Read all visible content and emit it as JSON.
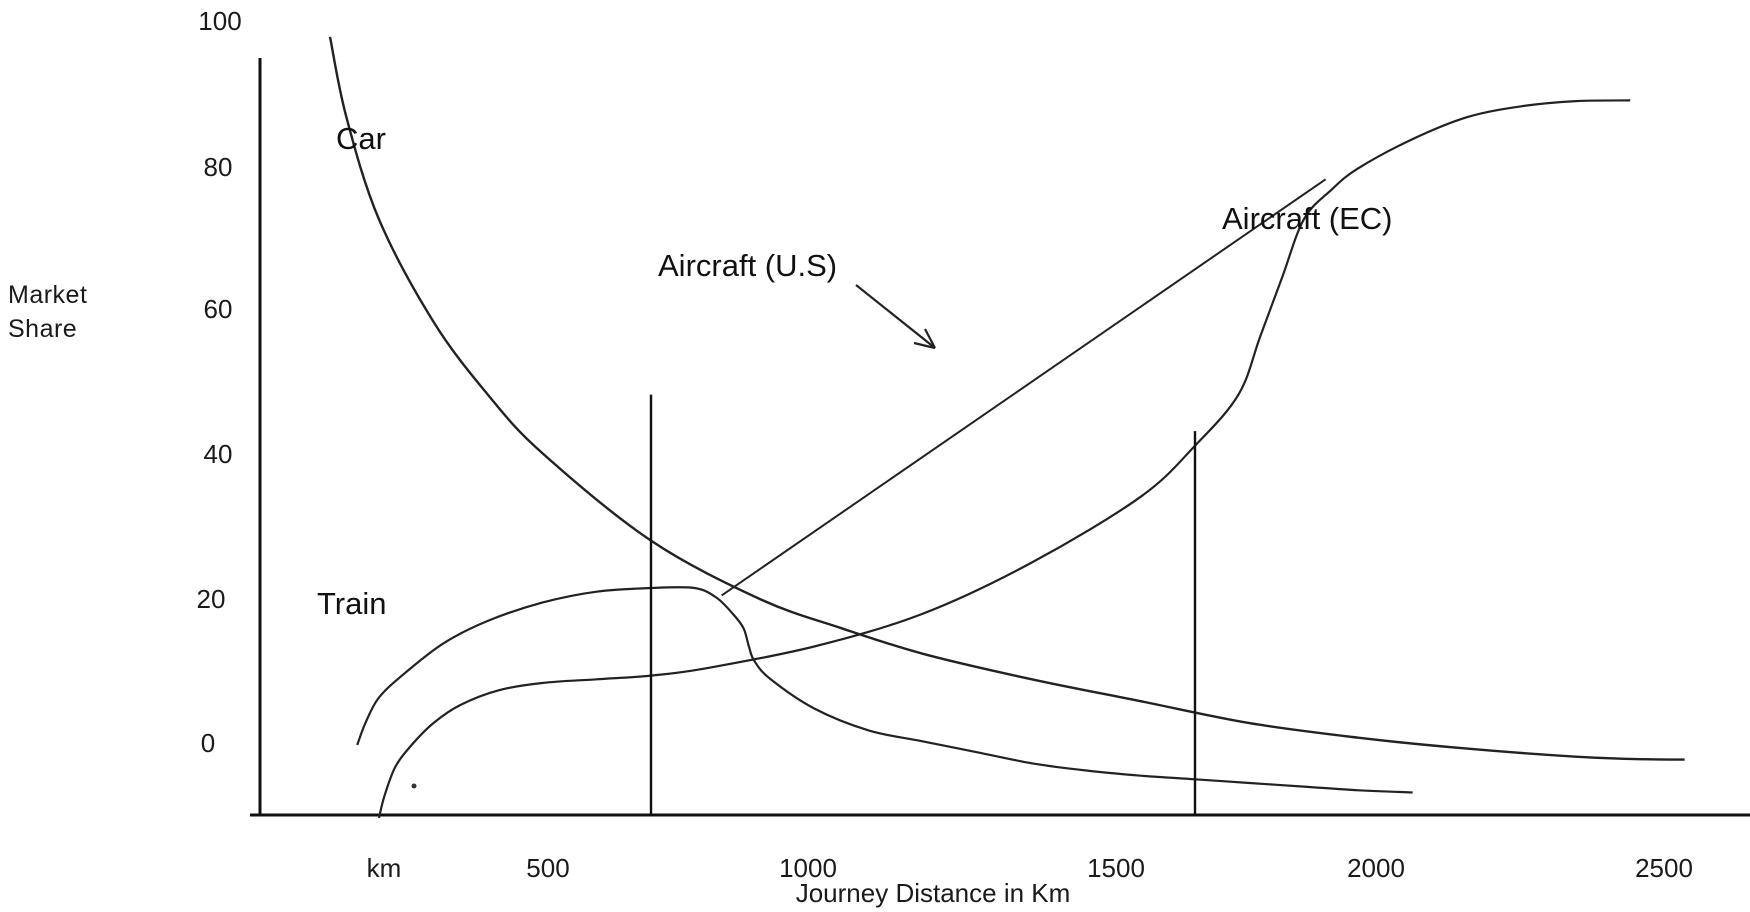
{
  "chart_data": {
    "type": "line",
    "title": "",
    "ylabel_lines": [
      "Market",
      "Share"
    ],
    "xlabel": "Journey Distance in Km",
    "x_ticks": [
      "km",
      "500",
      "1000",
      "1500",
      "2000",
      "2500"
    ],
    "y_ticks": [
      "100",
      "80",
      "60",
      "40",
      "20",
      "0"
    ],
    "xlim": [
      0,
      2500
    ],
    "ylim": [
      -10,
      100
    ],
    "series": [
      {
        "name": "Car",
        "points": [
          [
            -90,
            97
          ],
          [
            -60,
            86
          ],
          [
            0,
            72
          ],
          [
            100,
            58
          ],
          [
            200,
            48
          ],
          [
            300,
            40
          ],
          [
            500,
            28
          ],
          [
            700,
            20
          ],
          [
            850,
            16
          ],
          [
            1000,
            12.5
          ],
          [
            1200,
            9
          ],
          [
            1400,
            6
          ],
          [
            1600,
            3
          ],
          [
            1800,
            1
          ],
          [
            2000,
            -0.5
          ],
          [
            2200,
            -1.6
          ],
          [
            2300,
            -1.9
          ],
          [
            2400,
            -2
          ]
        ]
      },
      {
        "name": "Train",
        "points": [
          [
            -40,
            0
          ],
          [
            -25,
            3
          ],
          [
            0,
            6.5
          ],
          [
            50,
            10
          ],
          [
            120,
            14
          ],
          [
            200,
            17
          ],
          [
            300,
            19.5
          ],
          [
            400,
            21
          ],
          [
            500,
            21.5
          ],
          [
            580,
            21.5
          ],
          [
            620,
            20.2
          ],
          [
            650,
            18
          ],
          [
            670,
            16
          ],
          [
            680,
            13.5
          ],
          [
            690,
            11.5
          ],
          [
            720,
            9
          ],
          [
            800,
            5
          ],
          [
            900,
            2
          ],
          [
            1000,
            0.5
          ],
          [
            1100,
            -1
          ],
          [
            1200,
            -2.5
          ],
          [
            1300,
            -3.5
          ],
          [
            1400,
            -4.2
          ],
          [
            1500,
            -4.7
          ],
          [
            1600,
            -5.2
          ],
          [
            1700,
            -5.7
          ],
          [
            1800,
            -6.2
          ],
          [
            1900,
            -6.5
          ]
        ]
      },
      {
        "name": "Aircraft (EC)",
        "points": [
          [
            0,
            -10
          ],
          [
            10,
            -7
          ],
          [
            30,
            -3
          ],
          [
            60,
            0
          ],
          [
            100,
            3
          ],
          [
            150,
            5.5
          ],
          [
            220,
            7.5
          ],
          [
            300,
            8.5
          ],
          [
            400,
            9
          ],
          [
            500,
            9.5
          ],
          [
            600,
            10.5
          ],
          [
            800,
            13.5
          ],
          [
            1000,
            18
          ],
          [
            1200,
            25
          ],
          [
            1400,
            34
          ],
          [
            1500,
            41
          ],
          [
            1580,
            48
          ],
          [
            1620,
            56
          ],
          [
            1660,
            64
          ],
          [
            1700,
            72
          ],
          [
            1750,
            76
          ],
          [
            1800,
            79
          ],
          [
            1900,
            83
          ],
          [
            2000,
            86
          ],
          [
            2100,
            87.5
          ],
          [
            2200,
            88.2
          ],
          [
            2300,
            88.3
          ]
        ]
      },
      {
        "name": "Aircraft (U.S)",
        "points": [
          [
            630,
            20.5
          ],
          [
            1740,
            77.5
          ]
        ]
      }
    ],
    "reference_lines_x": [
      500,
      1500
    ],
    "series_labels": {
      "car": "Car",
      "train": "Train",
      "aircraft_us": "Aircraft (U.S)",
      "aircraft_ec": "Aircraft (EC)"
    },
    "grid": false,
    "legend": "inline labels"
  }
}
